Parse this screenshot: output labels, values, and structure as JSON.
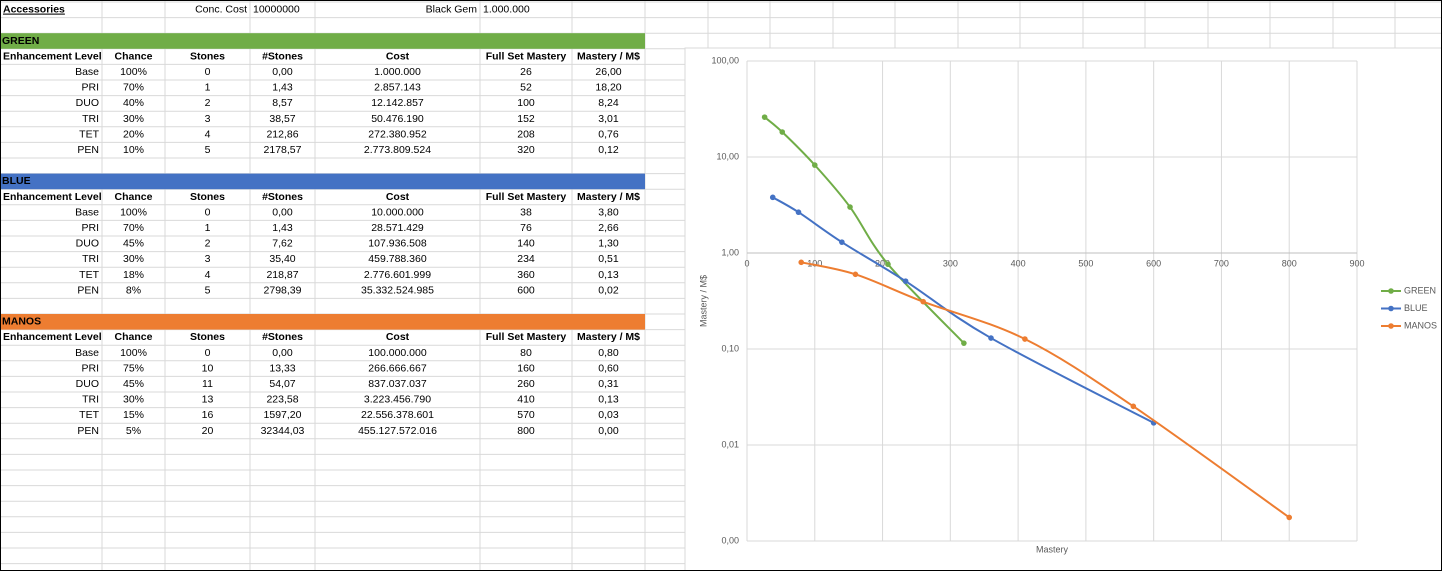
{
  "header": {
    "title": "Accessories",
    "conc_cost_label": "Conc. Cost",
    "conc_cost": "10000000",
    "black_gem_label": "Black Gem",
    "black_gem": "1.000.000"
  },
  "sections": [
    {
      "name": "GREEN",
      "color": "#70ad47",
      "columns": [
        "Enhancement Level",
        "Chance",
        "Stones",
        "#Stones",
        "Cost",
        "Full Set Mastery",
        "Mastery / M$"
      ],
      "rows": [
        [
          "Base",
          "100%",
          "0",
          "0,00",
          "1.000.000",
          "26",
          "26,00"
        ],
        [
          "PRI",
          "70%",
          "1",
          "1,43",
          "2.857.143",
          "52",
          "18,20"
        ],
        [
          "DUO",
          "40%",
          "2",
          "8,57",
          "12.142.857",
          "100",
          "8,24"
        ],
        [
          "TRI",
          "30%",
          "3",
          "38,57",
          "50.476.190",
          "152",
          "3,01"
        ],
        [
          "TET",
          "20%",
          "4",
          "212,86",
          "272.380.952",
          "208",
          "0,76"
        ],
        [
          "PEN",
          "10%",
          "5",
          "2178,57",
          "2.773.809.524",
          "320",
          "0,12"
        ]
      ]
    },
    {
      "name": "BLUE",
      "color": "#4472c4",
      "columns": [
        "Enhancement Level",
        "Chance",
        "Stones",
        "#Stones",
        "Cost",
        "Full Set Mastery",
        "Mastery / M$"
      ],
      "rows": [
        [
          "Base",
          "100%",
          "0",
          "0,00",
          "10.000.000",
          "38",
          "3,80"
        ],
        [
          "PRI",
          "70%",
          "1",
          "1,43",
          "28.571.429",
          "76",
          "2,66"
        ],
        [
          "DUO",
          "45%",
          "2",
          "7,62",
          "107.936.508",
          "140",
          "1,30"
        ],
        [
          "TRI",
          "30%",
          "3",
          "35,40",
          "459.788.360",
          "234",
          "0,51"
        ],
        [
          "TET",
          "18%",
          "4",
          "218,87",
          "2.776.601.999",
          "360",
          "0,13"
        ],
        [
          "PEN",
          "8%",
          "5",
          "2798,39",
          "35.332.524.985",
          "600",
          "0,02"
        ]
      ]
    },
    {
      "name": "MANOS",
      "color": "#ed7d31",
      "columns": [
        "Enhancement Level",
        "Chance",
        "Stones",
        "#Stones",
        "Cost",
        "Full Set Mastery",
        "Mastery / M$"
      ],
      "rows": [
        [
          "Base",
          "100%",
          "0",
          "0,00",
          "100.000.000",
          "80",
          "0,80"
        ],
        [
          "PRI",
          "75%",
          "10",
          "13,33",
          "266.666.667",
          "160",
          "0,60"
        ],
        [
          "DUO",
          "45%",
          "11",
          "54,07",
          "837.037.037",
          "260",
          "0,31"
        ],
        [
          "TRI",
          "30%",
          "13",
          "223,58",
          "3.223.456.790",
          "410",
          "0,13"
        ],
        [
          "TET",
          "15%",
          "16",
          "1597,20",
          "22.556.378.601",
          "570",
          "0,03"
        ],
        [
          "PEN",
          "5%",
          "20",
          "32344,03",
          "455.127.572.016",
          "800",
          "0,00"
        ]
      ]
    }
  ],
  "chart_data": {
    "type": "line",
    "xlabel": "Mastery",
    "ylabel": "Mastery / M$",
    "log_y": true,
    "grid": true,
    "x_axis_crosses": 1,
    "legend": "right",
    "xlim": [
      0,
      900
    ],
    "xticks": [
      0,
      100,
      200,
      300,
      400,
      500,
      600,
      700,
      800,
      900
    ],
    "ylim": [
      0.001,
      100
    ],
    "yticks": [
      {
        "value": 100,
        "label": "100,00"
      },
      {
        "value": 10,
        "label": "10,00"
      },
      {
        "value": 1,
        "label": "1,00"
      },
      {
        "value": 0.1,
        "label": "0,10"
      },
      {
        "value": 0.01,
        "label": "0,01"
      },
      {
        "value": 0.001,
        "label": "0,00"
      }
    ],
    "series": [
      {
        "name": "GREEN",
        "color": "#70ad47",
        "x": [
          26,
          52,
          100,
          152,
          208,
          320
        ],
        "values": [
          26,
          18.2,
          8.235,
          3.011,
          0.764,
          0.115
        ]
      },
      {
        "name": "BLUE",
        "color": "#4472c4",
        "x": [
          38,
          76,
          140,
          234,
          360,
          600
        ],
        "values": [
          3.8,
          2.66,
          1.297,
          0.509,
          0.13,
          0.017
        ]
      },
      {
        "name": "MANOS",
        "color": "#ed7d31",
        "x": [
          80,
          160,
          260,
          410,
          570,
          800
        ],
        "values": [
          0.8,
          0.6,
          0.311,
          0.127,
          0.0253,
          0.00176
        ]
      }
    ]
  }
}
